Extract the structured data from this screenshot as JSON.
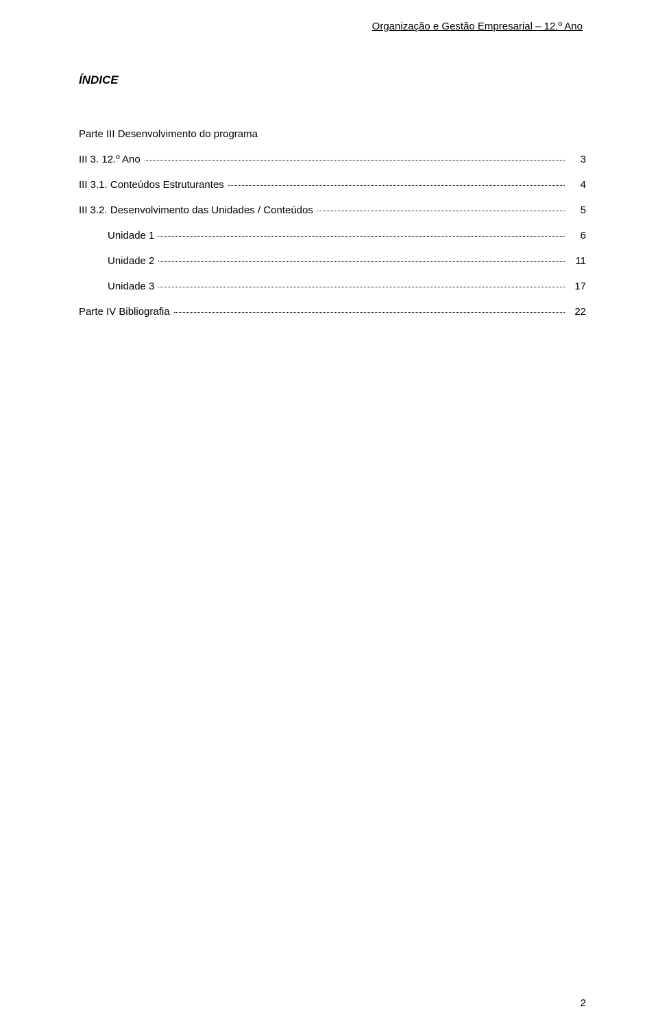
{
  "header": "Organização e Gestão Empresarial – 12.º Ano",
  "title": "ÍNDICE",
  "toc": {
    "items": [
      {
        "label": "Parte III Desenvolvimento do programa",
        "page": "",
        "indent": false,
        "showDots": false,
        "showPage": false
      },
      {
        "label": "III 3. 12.º Ano",
        "page": "3",
        "indent": false,
        "showDots": true,
        "showPage": true
      },
      {
        "label": "III 3.1. Conteúdos Estruturantes",
        "page": "4",
        "indent": false,
        "showDots": true,
        "showPage": true
      },
      {
        "label": "III 3.2. Desenvolvimento das Unidades / Conteúdos",
        "page": "5",
        "indent": false,
        "showDots": true,
        "showPage": true
      },
      {
        "label": "Unidade 1",
        "page": "6",
        "indent": true,
        "showDots": true,
        "showPage": true
      },
      {
        "label": "Unidade 2",
        "page": "11",
        "indent": true,
        "showDots": true,
        "showPage": true
      },
      {
        "label": "Unidade 3",
        "page": "17",
        "indent": true,
        "showDots": true,
        "showPage": true
      },
      {
        "label": "Parte IV Bibliografia",
        "page": "22",
        "indent": false,
        "showDots": true,
        "showPage": true
      }
    ]
  },
  "pageNumber": "2",
  "colors": {
    "background": "#ffffff",
    "text": "#000000"
  },
  "typography": {
    "body_fontsize": 15,
    "title_fontsize": 17,
    "title_weight": "bold",
    "title_style": "italic"
  }
}
